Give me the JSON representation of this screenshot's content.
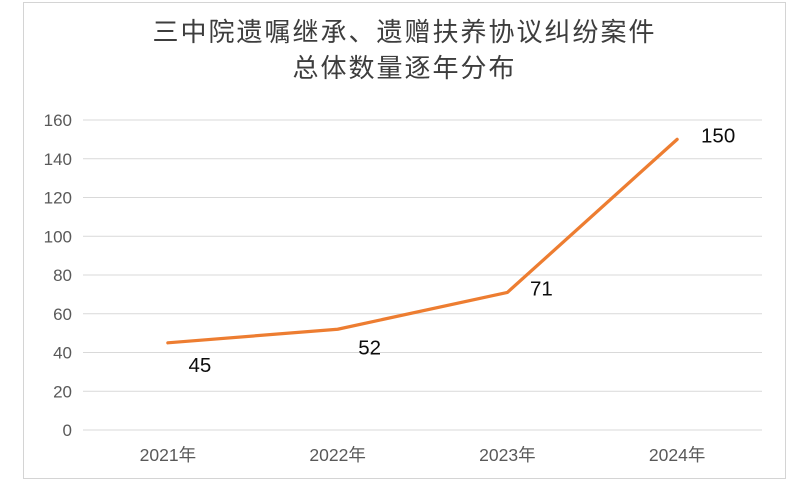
{
  "chart_data": {
    "type": "line",
    "title": "三中院遗嘱继承、遗赠扶养协议纠纷案件 总体数量逐年分布",
    "title_lines": [
      "三中院遗嘱继承、遗赠扶养协议纠纷案件",
      "总体数量逐年分布"
    ],
    "categories": [
      "2021年",
      "2022年",
      "2023年",
      "2024年"
    ],
    "values": [
      45,
      52,
      71,
      150
    ],
    "data_labels": [
      "45",
      "52",
      "71",
      "150"
    ],
    "xlabel": "",
    "ylabel": "",
    "ylim": [
      0,
      160
    ],
    "ytick_step": 20,
    "ytick_labels": [
      "0",
      "20",
      "40",
      "60",
      "80",
      "100",
      "120",
      "140",
      "160"
    ],
    "grid": true,
    "legend": false,
    "line_color": "#ED7D31",
    "gridline_color": "#D9D9D9",
    "axis_label_color": "#595959",
    "data_label_color": "#0d0d0d",
    "title_color": "#3d3d3d",
    "frame_border_color": "#d4d4d4"
  }
}
